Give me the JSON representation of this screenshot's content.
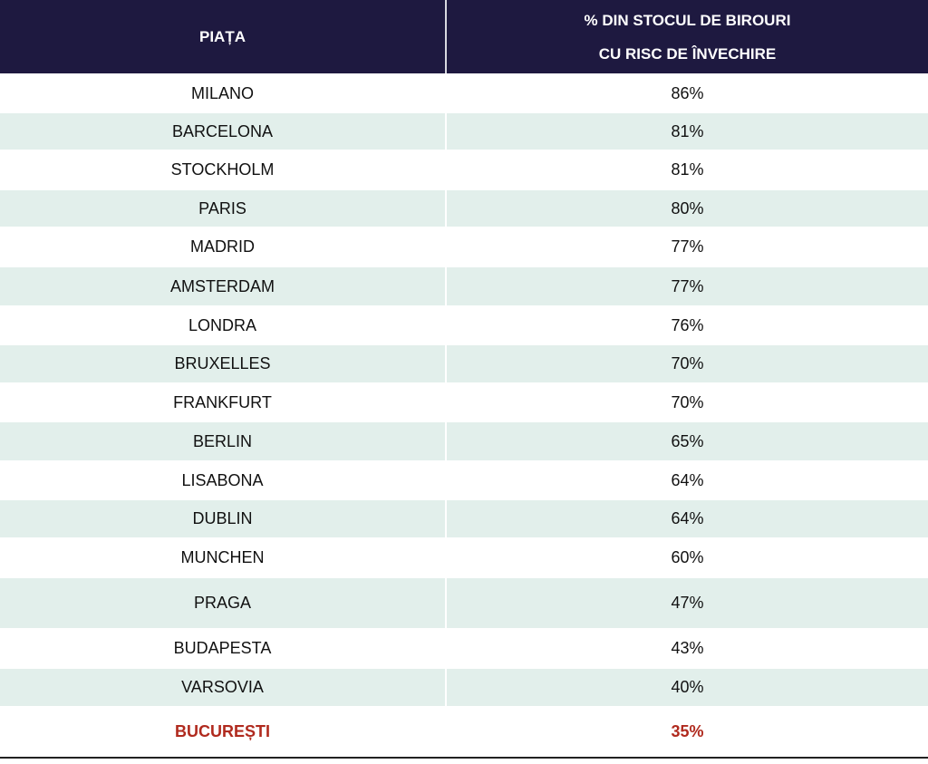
{
  "table": {
    "headers": {
      "market": "PIAȚA",
      "share_line1": "% DIN STOCUL DE BIROURI",
      "share_line2": "CU RISC DE ÎNVECHIRE"
    },
    "rows": [
      {
        "market": "MILANO",
        "share": "86%"
      },
      {
        "market": "BARCELONA",
        "share": "81%"
      },
      {
        "market": "STOCKHOLM",
        "share": "81%"
      },
      {
        "market": "PARIS",
        "share": "80%"
      },
      {
        "market": "MADRID",
        "share": "77%"
      },
      {
        "market": "AMSTERDAM",
        "share": "77%"
      },
      {
        "market": "LONDRA",
        "share": "76%"
      },
      {
        "market": "BRUXELLES",
        "share": "70%"
      },
      {
        "market": "FRANKFURT",
        "share": "70%"
      },
      {
        "market": "BERLIN",
        "share": "65%"
      },
      {
        "market": "LISABONA",
        "share": "64%"
      },
      {
        "market": "DUBLIN",
        "share": "64%"
      },
      {
        "market": "MUNCHEN",
        "share": "60%"
      },
      {
        "market": "PRAGA",
        "share": "47%"
      },
      {
        "market": "BUDAPESTA",
        "share": "43%"
      },
      {
        "market": "VARSOVIA",
        "share": "40%"
      },
      {
        "market": "BUCUREȘTI",
        "share": "35%",
        "highlight": true
      }
    ],
    "colors": {
      "header_bg": "#1e1940",
      "alt_row": "#e2efeb",
      "highlight": "#b02a1e"
    }
  }
}
